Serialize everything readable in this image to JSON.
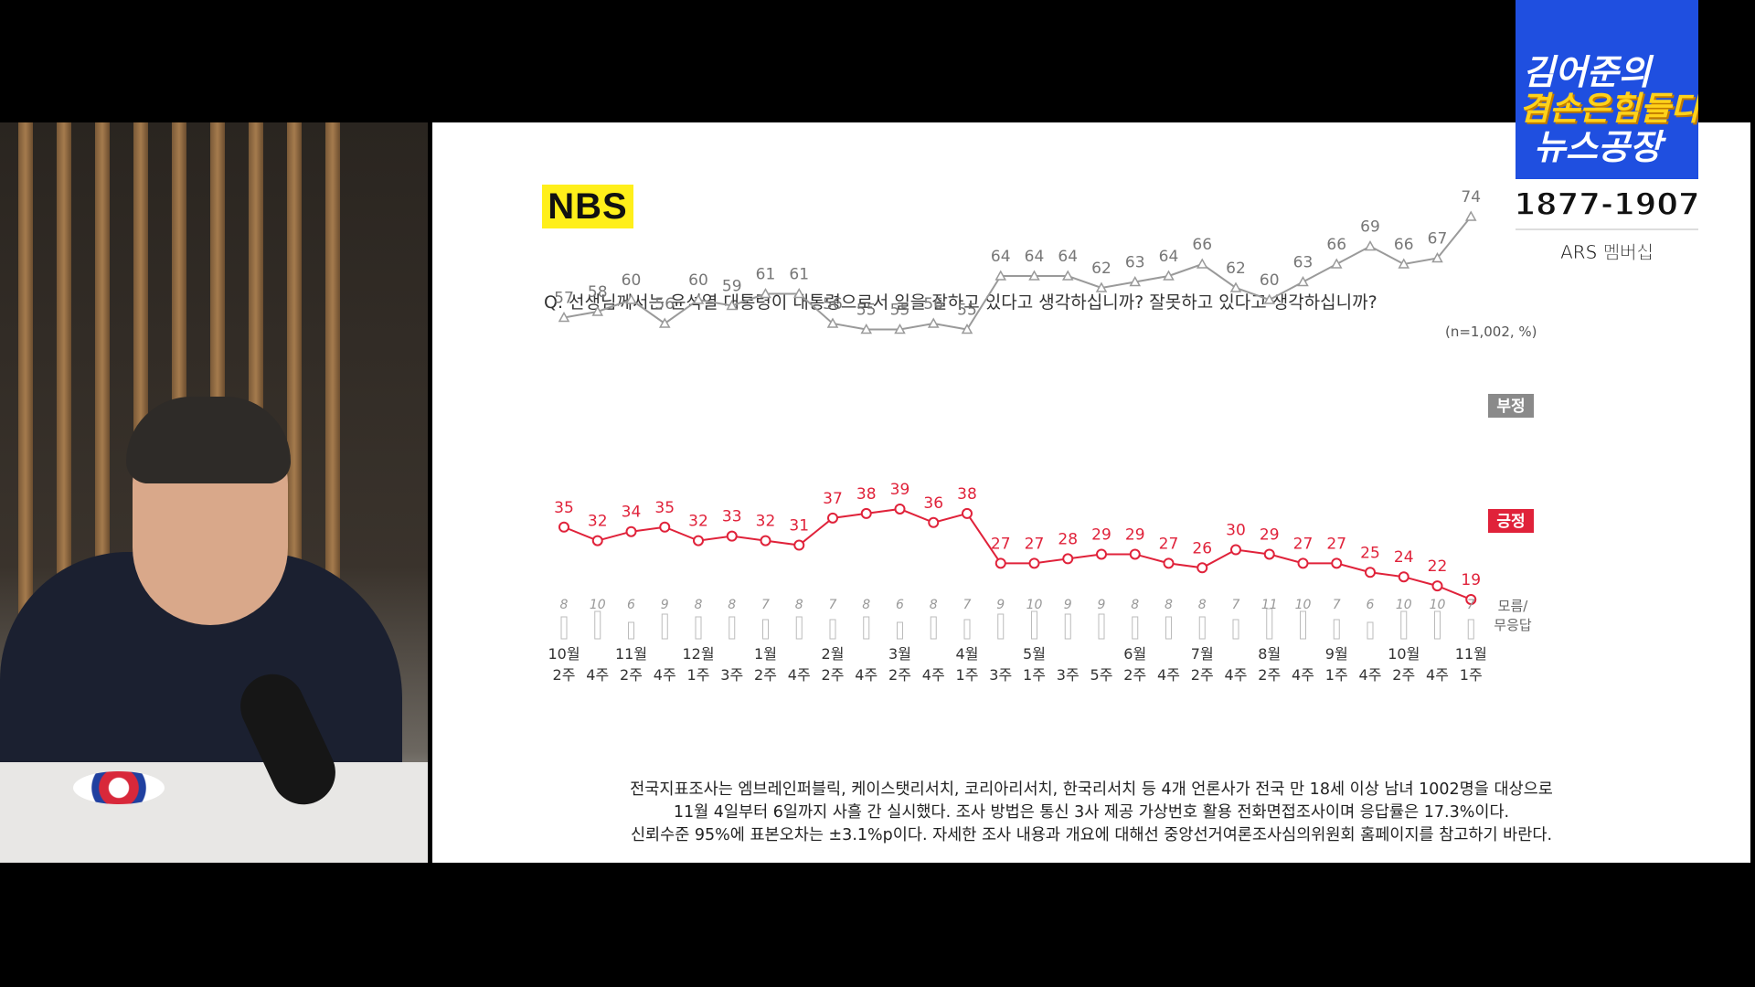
{
  "brand": {
    "line1": "김어준의",
    "line2": "겸손은힘들다",
    "line3": "뉴스공장",
    "phone": "1877-1907",
    "membership": "ARS 멤버십",
    "color": "#1f4fe0"
  },
  "slide": {
    "badge": "NBS",
    "question": "Q. 선생님께서는 윤석열 대통령이 대통령으로서 일을 잘하고 있다고 생각하십니까? 잘못하고 있다고 생각하십니까?",
    "sample_note": "(n=1,002,  %)",
    "footnote": [
      "전국지표조사는 엠브레인퍼블릭, 케이스탯리서치, 코리아리서치, 한국리서치 등 4개 언론사가 전국 만 18세 이상 남녀 1002명을 대상으로",
      "11월 4일부터 6일까지 사흘 간 실시했다. 조사 방법은 통신 3사 제공 가상번호 활용 전화면접조사이며 응답률은 17.3%이다.",
      "신뢰수준 95%에 표본오차는 ±3.1%p이다. 자세한 조사 내용과 개요에 대해선 중앙선거여론조사심의위원회 홈페이지를 참고하기 바란다."
    ]
  },
  "chart_data": {
    "type": "line",
    "x_month_labels": [
      "10월",
      "",
      "11월",
      "",
      "12월",
      "",
      "1월",
      "",
      "2월",
      "",
      "3월",
      "",
      "4월",
      "",
      "5월",
      "",
      "",
      "6월",
      "",
      "7월",
      "",
      "8월",
      "",
      "9월",
      "",
      "10월",
      "",
      "11월"
    ],
    "x_week_labels": [
      "2주",
      "4주",
      "2주",
      "4주",
      "1주",
      "3주",
      "2주",
      "4주",
      "2주",
      "4주",
      "2주",
      "4주",
      "1주",
      "3주",
      "1주",
      "3주",
      "5주",
      "2주",
      "4주",
      "2주",
      "4주",
      "2주",
      "4주",
      "1주",
      "4주",
      "2주",
      "4주",
      "1주"
    ],
    "series": [
      {
        "name": "부정",
        "color": "#9a9a9a",
        "values": [
          57,
          58,
          60,
          56,
          60,
          59,
          61,
          61,
          56,
          55,
          55,
          56,
          55,
          64,
          64,
          64,
          62,
          63,
          64,
          66,
          62,
          60,
          63,
          66,
          69,
          66,
          67,
          74
        ]
      },
      {
        "name": "긍정",
        "color": "#e0223a",
        "values": [
          35,
          32,
          34,
          35,
          32,
          33,
          32,
          31,
          37,
          38,
          39,
          36,
          38,
          27,
          27,
          28,
          29,
          29,
          27,
          26,
          30,
          29,
          27,
          27,
          25,
          24,
          22,
          19
        ]
      },
      {
        "name": "모름/\n무응답",
        "color": "#aaaaaa",
        "values": [
          8,
          10,
          6,
          9,
          8,
          8,
          7,
          8,
          7,
          8,
          6,
          8,
          7,
          9,
          10,
          9,
          9,
          8,
          8,
          8,
          7,
          11,
          10,
          7,
          6,
          10,
          10,
          7
        ]
      }
    ]
  }
}
